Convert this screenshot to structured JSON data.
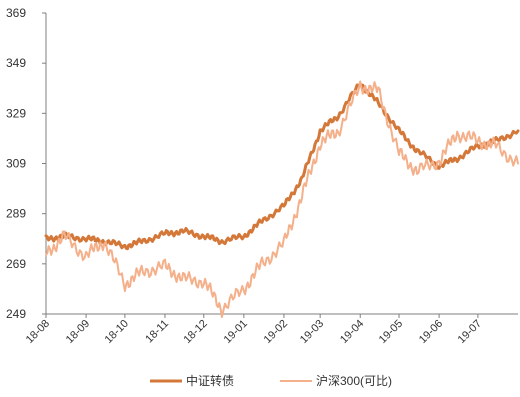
{
  "chart_data": {
    "type": "line",
    "title": "",
    "xlabel": "",
    "ylabel": "",
    "ylim": [
      249,
      369
    ],
    "yticks": [
      249,
      269,
      289,
      309,
      329,
      349,
      369
    ],
    "ytick_labels": [
      "249",
      "269",
      "289",
      "309",
      "329",
      "349",
      "369"
    ],
    "x_range": [
      "2018-08",
      "2019-08"
    ],
    "xticks": [
      {
        "date": "2018-08",
        "label": "18-08"
      },
      {
        "date": "2018-09",
        "label": "18-09"
      },
      {
        "date": "2018-10",
        "label": "18-10"
      },
      {
        "date": "2018-11",
        "label": "18-11"
      },
      {
        "date": "2018-12",
        "label": "18-12"
      },
      {
        "date": "2019-01",
        "label": "19-01"
      },
      {
        "date": "2019-02",
        "label": "19-02"
      },
      {
        "date": "2019-03",
        "label": "19-03"
      },
      {
        "date": "2019-04",
        "label": "19-04"
      },
      {
        "date": "2019-05",
        "label": "19-05"
      },
      {
        "date": "2019-06",
        "label": "19-06"
      },
      {
        "date": "2019-07",
        "label": "19-07"
      }
    ],
    "grid": false,
    "legend_position": "bottom",
    "series": [
      {
        "name": "中证转债",
        "color": "#D4783A",
        "points": [
          [
            "2018-08-01",
            279
          ],
          [
            "2018-08-15",
            280
          ],
          [
            "2018-09-01",
            279
          ],
          [
            "2018-09-15",
            278
          ],
          [
            "2018-10-01",
            276
          ],
          [
            "2018-10-15",
            278
          ],
          [
            "2018-11-01",
            281
          ],
          [
            "2018-11-15",
            282
          ],
          [
            "2018-12-01",
            280
          ],
          [
            "2018-12-15",
            278
          ],
          [
            "2019-01-01",
            280
          ],
          [
            "2019-01-15",
            286
          ],
          [
            "2019-02-01",
            292
          ],
          [
            "2019-02-15",
            303
          ],
          [
            "2019-03-01",
            322
          ],
          [
            "2019-03-15",
            328
          ],
          [
            "2019-04-01",
            341
          ],
          [
            "2019-04-15",
            333
          ],
          [
            "2019-05-01",
            322
          ],
          [
            "2019-05-15",
            314
          ],
          [
            "2019-06-01",
            308
          ],
          [
            "2019-06-15",
            311
          ],
          [
            "2019-07-01",
            316
          ],
          [
            "2019-07-15",
            318
          ],
          [
            "2019-08-01",
            322
          ]
        ]
      },
      {
        "name": "沪深300(可比)",
        "color": "#F4B08A",
        "points": [
          [
            "2018-08-01",
            273
          ],
          [
            "2018-08-15",
            280
          ],
          [
            "2018-09-01",
            272
          ],
          [
            "2018-09-15",
            278
          ],
          [
            "2018-10-01",
            261
          ],
          [
            "2018-10-15",
            266
          ],
          [
            "2018-11-01",
            268
          ],
          [
            "2018-11-15",
            263
          ],
          [
            "2018-12-01",
            262
          ],
          [
            "2018-12-15",
            251
          ],
          [
            "2019-01-01",
            259
          ],
          [
            "2019-01-15",
            269
          ],
          [
            "2019-02-01",
            277
          ],
          [
            "2019-02-15",
            296
          ],
          [
            "2019-03-01",
            317
          ],
          [
            "2019-03-15",
            322
          ],
          [
            "2019-04-01",
            340
          ],
          [
            "2019-04-15",
            338
          ],
          [
            "2019-05-01",
            313
          ],
          [
            "2019-05-15",
            306
          ],
          [
            "2019-06-01",
            310
          ],
          [
            "2019-06-15",
            321
          ],
          [
            "2019-07-01",
            318
          ],
          [
            "2019-07-15",
            316
          ],
          [
            "2019-08-01",
            309
          ]
        ]
      }
    ]
  }
}
